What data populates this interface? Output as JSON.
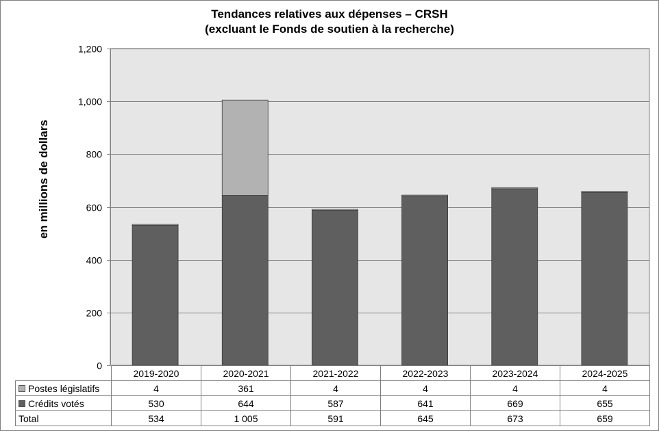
{
  "chart_data": {
    "type": "bar",
    "stacked": true,
    "title_line1": "Tendances relatives aux dépenses  –  CRSH",
    "title_line2": "(excluant le Fonds de soutien à la recherche)",
    "ylabel": "en millions de dollars",
    "ylim": [
      0,
      1200
    ],
    "yticks": [
      "0",
      "200",
      "400",
      "600",
      "800",
      "1,000",
      "1,200"
    ],
    "ytick_values": [
      0,
      200,
      400,
      600,
      800,
      1000,
      1200
    ],
    "grid": true,
    "categories": [
      "2019-2020",
      "2020-2021",
      "2021-2022",
      "2022-2023",
      "2023-2024",
      "2024-2025"
    ],
    "series": [
      {
        "name": "Crédits votés",
        "values": [
          530,
          644,
          587,
          641,
          669,
          655
        ],
        "color": "#5f5f5f"
      },
      {
        "name": "Postes législatifs",
        "values": [
          4,
          361,
          4,
          4,
          4,
          4
        ],
        "color": "#b2b2b2"
      }
    ],
    "table": {
      "rows": [
        {
          "label": "Postes législatifs",
          "swatch": "#b2b2b2",
          "cells": [
            "4",
            "361",
            "4",
            "4",
            "4",
            "4"
          ]
        },
        {
          "label": "Crédits votés",
          "swatch": "#5f5f5f",
          "cells": [
            "530",
            "644",
            "587",
            "641",
            "669",
            "655"
          ]
        },
        {
          "label": "Total",
          "swatch": null,
          "cells": [
            "534",
            "1 005",
            "591",
            "645",
            "673",
            "659"
          ]
        }
      ]
    },
    "plot_background": "#e6e6e6"
  }
}
